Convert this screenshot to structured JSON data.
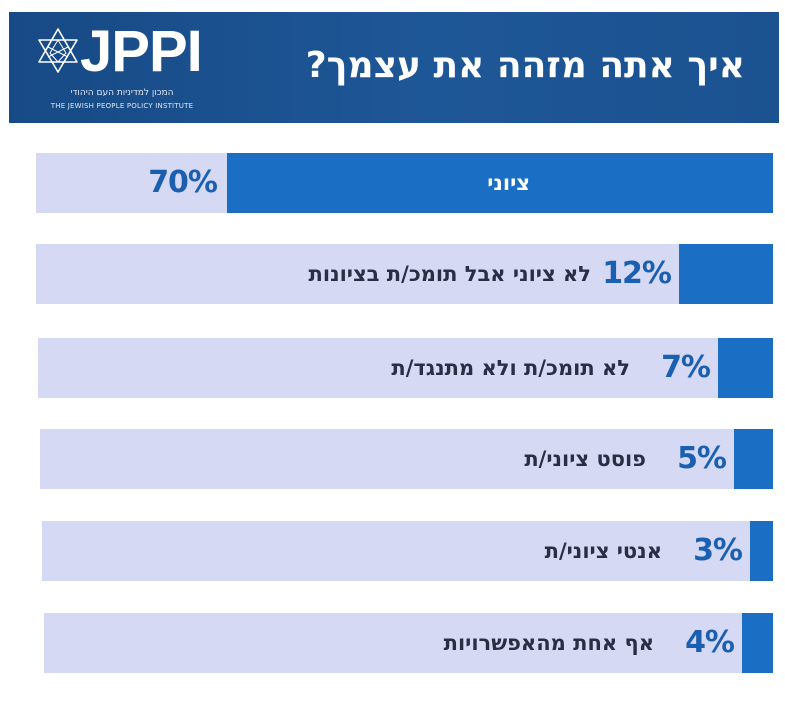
{
  "header": {
    "title": "איך אתה מזהה את עצמך?",
    "logo_text": "JPPI",
    "logo_subtitle_hebrew": "המכון למדיניות העם היהודי",
    "logo_subtitle_english": "THE JEWISH PEOPLE POLICY INSTITUTE"
  },
  "colors": {
    "header_bg": "#1b5290",
    "bar_fill": "#1a6fc4",
    "row_bg": "#d5d9f4",
    "pct_text": "#1a5fb0",
    "highlight_text": "#ffffff",
    "label_text": "#2a2e45"
  },
  "chart_data": {
    "type": "bar",
    "orientation": "horizontal",
    "title": "איך אתה מזהה את עצמך?",
    "unit": "%",
    "xlim": [
      0,
      100
    ],
    "categories": [
      "ציוני",
      "לא ציוני אבל תומכ/ת בציונות",
      "לא תומכ/ת ולא מתנגד/ת",
      "פוסט ציוני/ת",
      "אנטי ציוני/ת",
      "אף אחת מהאפשרויות"
    ],
    "values": [
      70,
      12,
      7,
      5,
      3,
      4
    ],
    "value_labels": [
      "70%",
      "12%",
      "7%",
      "5%",
      "3%",
      "4%"
    ]
  }
}
